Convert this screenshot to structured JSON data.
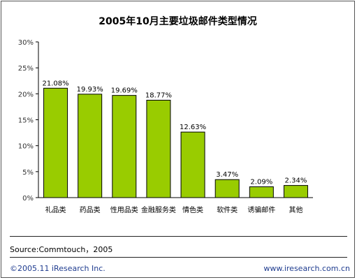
{
  "chart_data": {
    "type": "bar",
    "title": "2005年10月主要垃圾邮件类型情况",
    "categories": [
      "礼品类",
      "药品类",
      "性用品类",
      "金融服务类",
      "情色类",
      "软件类",
      "诱骗邮件",
      "其他"
    ],
    "values": [
      21.08,
      19.93,
      19.69,
      18.77,
      12.63,
      3.47,
      2.09,
      2.34
    ],
    "data_labels": [
      "21.08%",
      "19.93%",
      "19.69%",
      "18.77%",
      "12.63%",
      "3.47%",
      "2.09%",
      "2.34%"
    ],
    "ylim": [
      0,
      30
    ],
    "yticks": [
      0,
      5,
      10,
      15,
      20,
      25,
      30
    ],
    "ytick_labels": [
      "0%",
      "5%",
      "10%",
      "15%",
      "20%",
      "25%",
      "30%"
    ],
    "grid": false,
    "legend": "none",
    "bar_color": "#99cc00",
    "bar_edge_color": "#000000"
  },
  "footer": {
    "source": "Source:Commtouch，2005",
    "copyright": "©2005.11 iResearch Inc.",
    "website": "www.iresearch.com.cn"
  }
}
